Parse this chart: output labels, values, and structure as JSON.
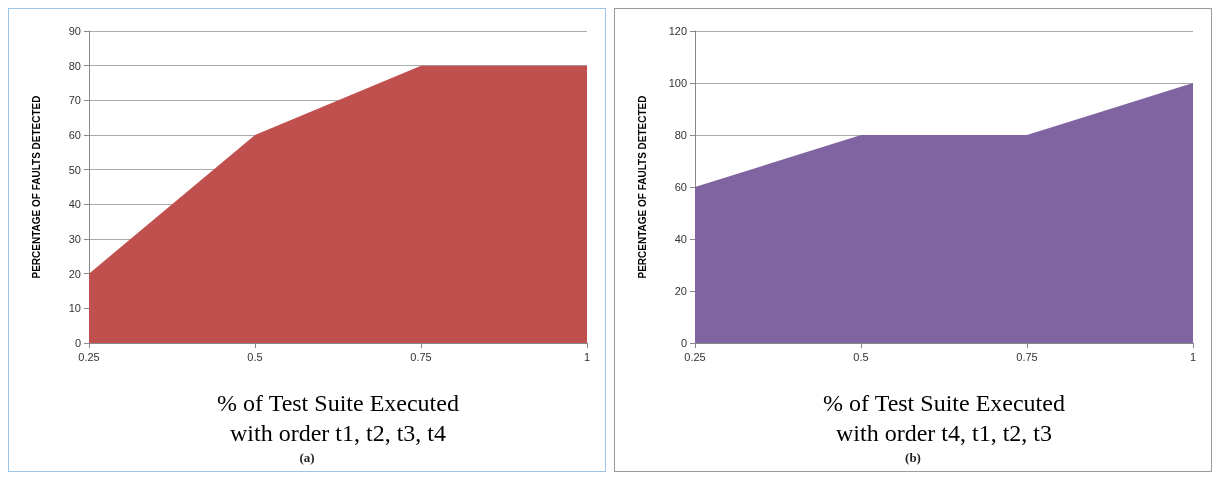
{
  "chart_data": [
    {
      "type": "area",
      "x": [
        0.25,
        0.5,
        0.75,
        1
      ],
      "values": [
        20,
        60,
        80,
        80
      ],
      "color": "#c0504d",
      "xlim": [
        0.25,
        1
      ],
      "xticks": [
        0.25,
        0.5,
        0.75,
        1
      ],
      "ylim": [
        0,
        90
      ],
      "yticks": [
        0,
        10,
        20,
        30,
        40,
        50,
        60,
        70,
        80,
        90
      ],
      "grid": "y",
      "ylabel": "PERCENTAGE OF FAULTS DETECTED",
      "xlabel": "% of Test Suite Executed\nwith order t1, t2, t3, t4",
      "annotations": [
        "(a)"
      ]
    },
    {
      "type": "area",
      "x": [
        0.25,
        0.5,
        0.75,
        1
      ],
      "values": [
        60,
        80,
        80,
        100
      ],
      "color": "#8064a2",
      "xlim": [
        0.25,
        1
      ],
      "xticks": [
        0.25,
        0.5,
        0.75,
        1
      ],
      "ylim": [
        0,
        120
      ],
      "yticks": [
        0,
        20,
        40,
        60,
        80,
        100,
        120
      ],
      "grid": "y",
      "ylabel": "PERCENTAGE OF FAULTS DETECTED",
      "xlabel": "% of Test Suite Executed\nwith order t4, t1, t2, t3",
      "annotations": [
        "(b)"
      ]
    }
  ]
}
